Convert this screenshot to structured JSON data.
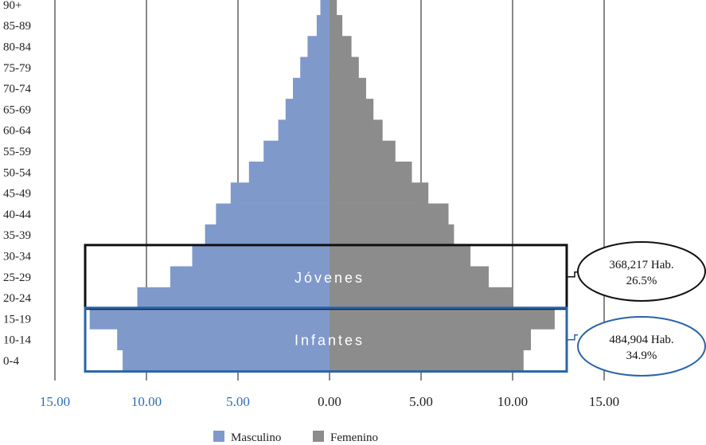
{
  "chart_data": {
    "type": "bar",
    "orientation": "horizontal",
    "categories": [
      "0-4",
      "10-14",
      "15-19",
      "20-24",
      "25-29",
      "30-34",
      "35-39",
      "40-44",
      "45-49",
      "50-54",
      "55-59",
      "60-64",
      "65-69",
      "70-74",
      "75-79",
      "80-84",
      "85-89",
      "90+"
    ],
    "series": [
      {
        "name": "Masculino",
        "color": "#7f99cb",
        "values": [
          11.3,
          11.6,
          13.1,
          10.5,
          8.7,
          7.5,
          6.8,
          6.2,
          5.4,
          4.4,
          3.6,
          2.8,
          2.4,
          2.0,
          1.6,
          1.2,
          0.7,
          0.5
        ]
      },
      {
        "name": "Femenino",
        "color": "#8c8c8c",
        "values": [
          10.6,
          11.0,
          12.3,
          10.0,
          8.7,
          7.7,
          6.8,
          6.5,
          5.4,
          4.5,
          3.6,
          2.9,
          2.4,
          2.0,
          1.6,
          1.2,
          0.7,
          0.4
        ]
      }
    ],
    "xlim": [
      -15,
      15
    ],
    "xticks": [
      -15,
      -10,
      -5,
      0,
      5,
      10,
      15
    ],
    "xtick_labels": [
      "15.00",
      "10.00",
      "5.00",
      "0.00",
      "5.00",
      "10.00",
      "15.00"
    ],
    "xtick_colors": [
      "#2e6db4",
      "#2e6db4",
      "#2e6db4",
      "#222222",
      "#222222",
      "#222222",
      "#222222"
    ],
    "grid": "vertical",
    "legend_position": "bottom-center",
    "annotations": [
      {
        "label": "Jóvenes",
        "categories": [
          "20-24",
          "30-34"
        ],
        "border_color": "#111111",
        "callout_line1": "368,217 Hab.",
        "callout_line2": "26.5%"
      },
      {
        "label": "Infantes",
        "categories": [
          "0-4",
          "15-19"
        ],
        "border_color": "#2a64a8",
        "callout_line1": "484,904 Hab.",
        "callout_line2": "34.9%"
      }
    ]
  },
  "legend": {
    "male": "Masculino",
    "female": "Femenino"
  }
}
